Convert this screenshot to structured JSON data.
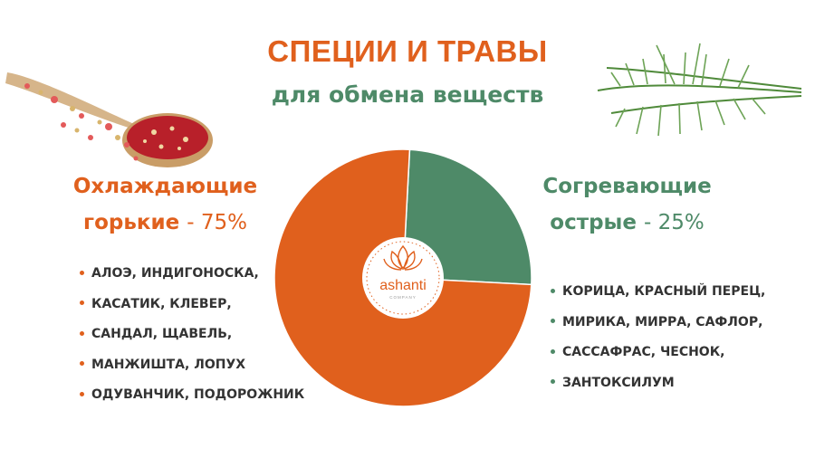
{
  "header": {
    "title": "СПЕЦИИ И ТРАВЫ",
    "subtitle": "для обмена веществ"
  },
  "left_group": {
    "heading_line1": "Охлаждающие",
    "heading_line2": "горькие",
    "percent": "- 75%",
    "items": [
      "АЛОЭ, ИНДИГОНОСКА,",
      "КАСАТИК, КЛЕВЕР,",
      "САНДАЛ, ЩАВЕЛЬ,",
      "МАНЖИШТА, ЛОПУХ",
      "ОДУВАНЧИК, ПОДОРОЖНИК"
    ]
  },
  "right_group": {
    "heading_line1": "Согревающие",
    "heading_line2": "острые",
    "percent": "- 25%",
    "items": [
      "КОРИЦА, КРАСНЫЙ ПЕРЕЦ,",
      "МИРИКА, МИРРА, САФЛОР,",
      "САССАФРАС, ЧЕСНОК,",
      "ЗАНТОКСИЛУМ"
    ]
  },
  "logo": {
    "name": "ashanti",
    "tagline": "COMPANY"
  },
  "colors": {
    "orange": "#e0601d",
    "green": "#4e8a68"
  },
  "chart_data": {
    "type": "pie",
    "categories": [
      "Охлаждающие горькие",
      "Согревающие острые"
    ],
    "values": [
      75,
      25
    ],
    "colors": [
      "#e0601d",
      "#4e8a68"
    ],
    "legend": "none"
  }
}
